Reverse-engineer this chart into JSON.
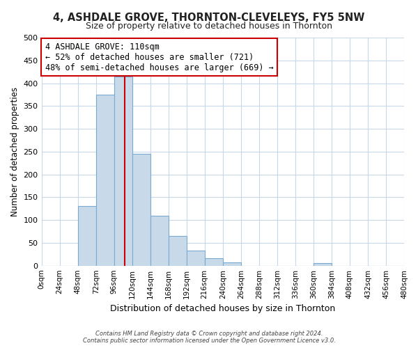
{
  "title": "4, ASHDALE GROVE, THORNTON-CLEVELEYS, FY5 5NW",
  "subtitle": "Size of property relative to detached houses in Thornton",
  "xlabel": "Distribution of detached houses by size in Thornton",
  "ylabel": "Number of detached properties",
  "bar_color": "#c8daea",
  "bar_edge_color": "#7aaad0",
  "bin_edges": [
    0,
    24,
    48,
    72,
    96,
    120,
    144,
    168,
    192,
    216,
    240,
    264,
    288,
    312,
    336,
    360,
    384,
    408,
    432,
    456,
    480
  ],
  "bar_heights": [
    0,
    0,
    130,
    375,
    415,
    245,
    110,
    65,
    33,
    16,
    7,
    0,
    0,
    0,
    0,
    6,
    0,
    0,
    0,
    0
  ],
  "xlim": [
    0,
    480
  ],
  "ylim": [
    0,
    500
  ],
  "yticks": [
    0,
    50,
    100,
    150,
    200,
    250,
    300,
    350,
    400,
    450,
    500
  ],
  "xtick_labels": [
    "0sqm",
    "24sqm",
    "48sqm",
    "72sqm",
    "96sqm",
    "120sqm",
    "144sqm",
    "168sqm",
    "192sqm",
    "216sqm",
    "240sqm",
    "264sqm",
    "288sqm",
    "312sqm",
    "336sqm",
    "360sqm",
    "384sqm",
    "408sqm",
    "432sqm",
    "456sqm",
    "480sqm"
  ],
  "property_size": 110,
  "vline_color": "#cc0000",
  "annotation_title": "4 ASHDALE GROVE: 110sqm",
  "annotation_line1": "← 52% of detached houses are smaller (721)",
  "annotation_line2": "48% of semi-detached houses are larger (669) →",
  "annotation_box_color": "#ffffff",
  "annotation_box_edge": "#cc0000",
  "footer_line1": "Contains HM Land Registry data © Crown copyright and database right 2024.",
  "footer_line2": "Contains public sector information licensed under the Open Government Licence v3.0.",
  "bg_color": "#ffffff",
  "grid_color": "#c8d8e8"
}
